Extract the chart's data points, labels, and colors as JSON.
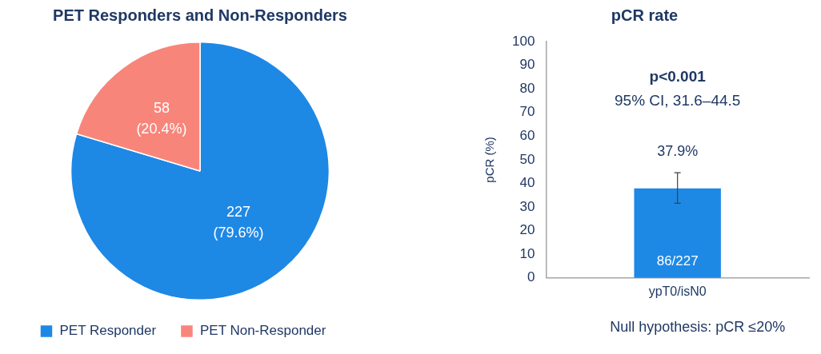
{
  "chart_data": [
    {
      "type": "pie",
      "title": "PET Responders and Non-Responders",
      "categories": [
        "PET Responder",
        "PET Non-Responder"
      ],
      "values": [
        227,
        58
      ],
      "colors": [
        "#1e88e5",
        "#f8857a"
      ],
      "value_labels": [
        "227\n(79.6%)",
        "58\n(20.4%)"
      ],
      "legend": "bottom"
    },
    {
      "type": "bar",
      "title": "pCR rate",
      "ylabel": "pCR (%)",
      "categories": [
        "ypT0/isN0"
      ],
      "values": [
        37.9
      ],
      "errors": [
        [
          31.6,
          44.5
        ]
      ],
      "value_labels": [
        "37.9%"
      ],
      "color": "#1e88e5",
      "ylim": [
        0,
        100
      ],
      "yticks": [
        0,
        10,
        20,
        30,
        40,
        50,
        60,
        70,
        80,
        90,
        100
      ],
      "grid": false,
      "legend": false,
      "annotations": [
        "p<0.001",
        "95% CI, 31.6–44.5",
        "86/227",
        "Null hypothesis: pCR ≤20%"
      ]
    }
  ]
}
